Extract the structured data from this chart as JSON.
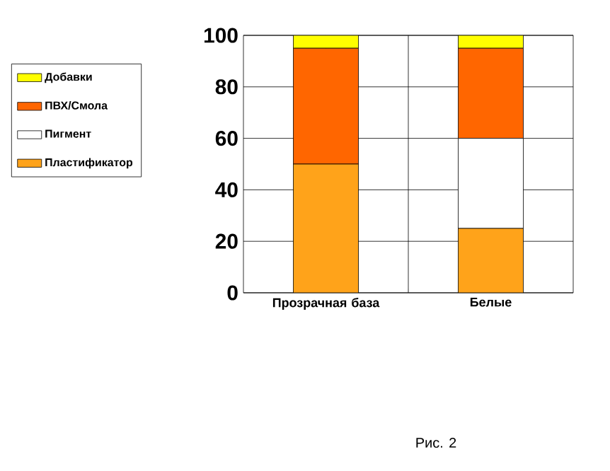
{
  "chart_data": {
    "type": "bar",
    "stacked": true,
    "categories": [
      "Прозрачная база",
      "Белые"
    ],
    "series": [
      {
        "name": "Пластификатор",
        "color": "#ffa31a",
        "values": [
          50,
          25
        ]
      },
      {
        "name": "Пигмент",
        "color": "#ffffff",
        "values": [
          0,
          35
        ]
      },
      {
        "name": "ПВХ/Смола",
        "color": "#ff6600",
        "values": [
          45,
          35
        ]
      },
      {
        "name": "Добавки",
        "color": "#ffff00",
        "values": [
          5,
          5
        ]
      }
    ],
    "ylim": [
      0,
      100
    ],
    "yticks": [
      0,
      20,
      40,
      60,
      80,
      100
    ],
    "grid": true,
    "legend": "left",
    "annotations": [
      "Рис. 2"
    ]
  }
}
